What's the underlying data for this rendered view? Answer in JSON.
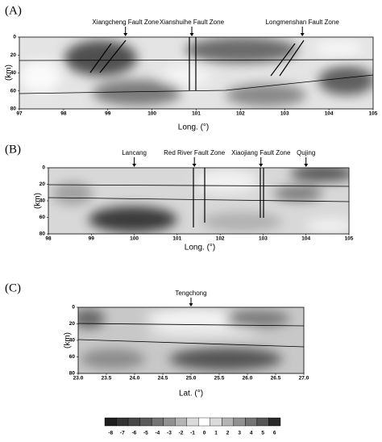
{
  "chart_data": [
    {
      "type": "contour",
      "title": "(A)",
      "x_label": "Long. (°)",
      "y_label": "(km)",
      "xlim": [
        97,
        105
      ],
      "ylim": [
        0,
        80
      ],
      "xticks": [
        97,
        98,
        99,
        100,
        101,
        102,
        103,
        104,
        105
      ],
      "yticks": [
        0,
        20,
        40,
        60,
        80
      ],
      "annotations": [
        {
          "text": "Xiangcheng  Fault Zone",
          "x": 99.4
        },
        {
          "text": "Xianshuihe Fault Zone",
          "x": 100.9
        },
        {
          "text": "Longmenshan Fault Zone",
          "x": 103.4
        }
      ]
    },
    {
      "type": "contour",
      "title": "(B)",
      "x_label": "Long. (°)",
      "y_label": "(km)",
      "xlim": [
        98,
        105
      ],
      "ylim": [
        0,
        80
      ],
      "xticks": [
        98,
        99,
        100,
        101,
        102,
        103,
        104,
        105
      ],
      "yticks": [
        0,
        20,
        40,
        60,
        80
      ],
      "annotations": [
        {
          "text": "Lancang",
          "x": 100.0
        },
        {
          "text": "Red River Fault Zone",
          "x": 101.4
        },
        {
          "text": "Xiaojiang Fault Zone",
          "x": 102.95
        },
        {
          "text": "Qujing",
          "x": 104.0
        }
      ]
    },
    {
      "type": "contour",
      "title": "(C)",
      "x_label": "Lat. (°)",
      "y_label": "(km)",
      "xlim": [
        23,
        27
      ],
      "ylim": [
        0,
        80
      ],
      "xticks": [
        {
          "value": 23,
          "label": "23.0"
        },
        23.5,
        {
          "value": 24,
          "label": "24.0"
        },
        24.5,
        {
          "value": 25,
          "label": "25.0"
        },
        25.5,
        {
          "value": 26,
          "label": "26.0"
        },
        26.5,
        {
          "value": 27,
          "label": "27.0"
        }
      ],
      "yticks": [
        0,
        20,
        40,
        60,
        80
      ],
      "annotations": [
        {
          "text": "Tengchong",
          "x": 25.0
        }
      ]
    },
    {
      "type": "colorbar",
      "ticks": [
        -8,
        -7,
        -6,
        -5,
        -4,
        -3,
        -2,
        -1,
        0,
        1,
        2,
        3,
        4,
        5,
        6
      ],
      "colors": [
        "#1e1e1e",
        "#333333",
        "#474747",
        "#5a5a5a",
        "#747474",
        "#919191",
        "#b4b4b4",
        "#dadada",
        "#ffffff",
        "#dadada",
        "#b4b4b4",
        "#919191",
        "#747474",
        "#555555",
        "#2a2a2a"
      ]
    }
  ]
}
